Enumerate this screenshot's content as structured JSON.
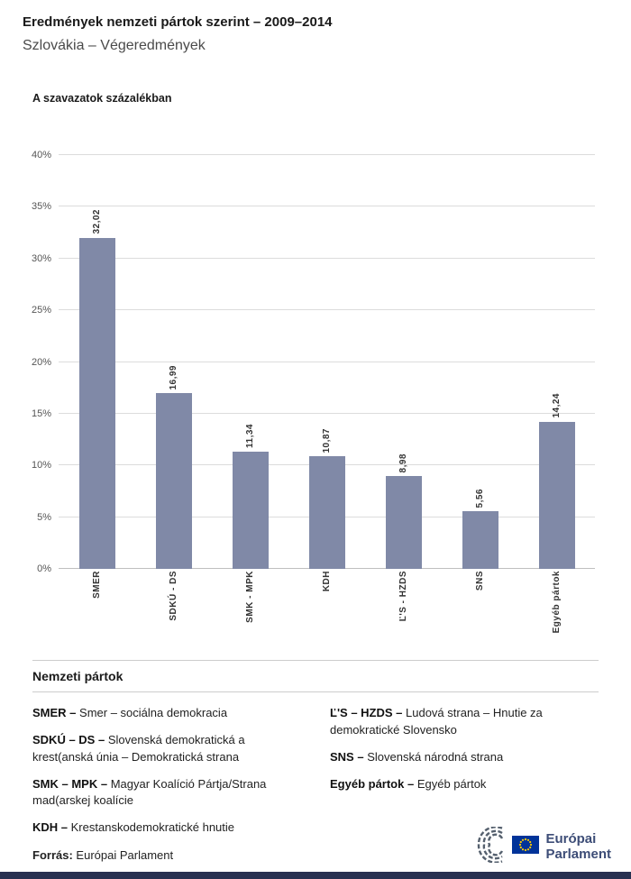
{
  "header": {
    "title": "Eredmények nemzeti pártok szerint – 2009–2014",
    "subtitle": "Szlovákia – Végeredmények"
  },
  "chart_data": {
    "type": "bar",
    "title": "A szavazatok százalékban",
    "categories": [
      "SMER",
      "SDKÚ - DS",
      "SMK - MPK",
      "KDH",
      "Ľ'S - HZDS",
      "SNS",
      "Egyéb pártok"
    ],
    "values": [
      32.02,
      16.99,
      11.34,
      10.87,
      8.98,
      5.56,
      14.24
    ],
    "value_labels": [
      "32,02",
      "16,99",
      "11,34",
      "10,87",
      "8,98",
      "5,56",
      "14,24"
    ],
    "ylabel": "",
    "xlabel": "",
    "ylim": [
      0,
      40
    ],
    "ytick_step": 5,
    "ytick_labels": [
      "0%",
      "5%",
      "10%",
      "15%",
      "20%",
      "25%",
      "30%",
      "35%",
      "40%"
    ],
    "grid": true,
    "bar_color": "#8089A7"
  },
  "legend": {
    "heading": "Nemzeti pártok",
    "columns": [
      [
        {
          "abbr": "SMER –",
          "name": "Smer – sociálna demokracia"
        },
        {
          "abbr": "SDKÚ – DS –",
          "name": "Slovenská demokratická a krest(anská únia – Demokratická strana"
        },
        {
          "abbr": "SMK – MPK –",
          "name": "Magyar Koalíció Pártja/Strana mad(arskej koalície"
        },
        {
          "abbr": "KDH –",
          "name": "Krestanskodemokratické hnutie"
        }
      ],
      [
        {
          "abbr": "Ľ'S – HZDS –",
          "name": "Ludová strana – Hnutie za demokratické Slovensko"
        },
        {
          "abbr": "SNS –",
          "name": "Slovenská národná strana"
        },
        {
          "abbr": "Egyéb pártok –",
          "name": "Egyéb pártok"
        }
      ]
    ]
  },
  "footer": {
    "source_label": "Forrás:",
    "source_value": "Európai Parlament",
    "logo_line1": "Európai",
    "logo_line2": "Parlament"
  }
}
